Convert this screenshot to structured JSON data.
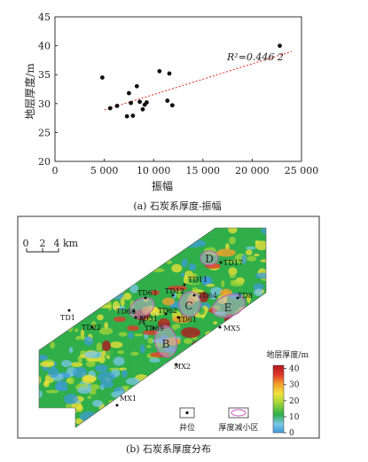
{
  "chart_data": [
    {
      "type": "scatter",
      "caption": "(a) 石炭系厚度-振幅",
      "xlabel": "振幅",
      "ylabel": "地层厚度/m",
      "xlim": [
        0,
        25000
      ],
      "ylim": [
        20,
        45
      ],
      "xticks": [
        "0",
        "5 000",
        "10 000",
        "15 000",
        "20 000",
        "25 000"
      ],
      "xtick_values": [
        0,
        5000,
        10000,
        15000,
        20000,
        25000
      ],
      "yticks": [
        "20",
        "25",
        "30",
        "35",
        "40",
        "45"
      ],
      "ytick_values": [
        20,
        25,
        30,
        35,
        40,
        45
      ],
      "points": [
        {
          "x": 4800,
          "y": 34.5
        },
        {
          "x": 5600,
          "y": 29.2
        },
        {
          "x": 6300,
          "y": 29.6
        },
        {
          "x": 7300,
          "y": 27.8
        },
        {
          "x": 7500,
          "y": 31.8
        },
        {
          "x": 7700,
          "y": 30.1
        },
        {
          "x": 7900,
          "y": 27.9
        },
        {
          "x": 8300,
          "y": 33.0
        },
        {
          "x": 8600,
          "y": 30.3
        },
        {
          "x": 8900,
          "y": 29.0
        },
        {
          "x": 9100,
          "y": 29.8
        },
        {
          "x": 9300,
          "y": 30.2
        },
        {
          "x": 10600,
          "y": 35.6
        },
        {
          "x": 11400,
          "y": 30.5
        },
        {
          "x": 11600,
          "y": 35.2
        },
        {
          "x": 11900,
          "y": 29.7
        },
        {
          "x": 22800,
          "y": 40.0
        }
      ],
      "trendline": {
        "x": [
          5000,
          24000
        ],
        "y": [
          28.9,
          39.0
        ],
        "style": "dotted",
        "color": "#e0392b"
      },
      "annotation": "R²=0.446 2",
      "grid": false
    },
    {
      "type": "heatmap",
      "caption": "(b) 石炭系厚度分布",
      "scale_label": "0  2  4 km",
      "scale_ticks": [
        "0",
        "2",
        "4"
      ],
      "scale_unit": "km",
      "colorbar": {
        "title": "地层厚度/m",
        "ticks": [
          "0",
          "10",
          "20",
          "30",
          "40"
        ],
        "tick_values": [
          0,
          10,
          20,
          30,
          40
        ],
        "colors": [
          "#3e9bd8",
          "#7cc6e8",
          "#2fae4a",
          "#a6d63a",
          "#f0e23a",
          "#f3a02c",
          "#e0392b",
          "#b01a1f"
        ]
      },
      "wells": [
        "TD17",
        "TD11",
        "TD63",
        "TD12",
        "TD64",
        "TD8",
        "TD68",
        "TD62",
        "TD1",
        "TD51",
        "TD61",
        "TD22",
        "TD69",
        "MX5",
        "MX2",
        "MX1"
      ],
      "zones": [
        "A",
        "B",
        "C",
        "D",
        "E"
      ],
      "legend": {
        "well": "井位",
        "zone": "厚度减小区"
      }
    }
  ]
}
